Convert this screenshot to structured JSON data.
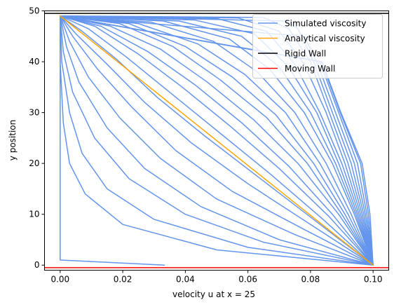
{
  "chart_data": {
    "type": "line",
    "title": "",
    "xlabel": "velocity u at x = 25",
    "ylabel": "y position",
    "xlim": [
      -0.005,
      0.105
    ],
    "ylim": [
      -1,
      50
    ],
    "xticks": [
      "0.00",
      "0.02",
      "0.04",
      "0.06",
      "0.08",
      "0.10"
    ],
    "xtick_values": [
      0,
      0.02,
      0.04,
      0.06,
      0.08,
      0.1
    ],
    "yticks": [
      "0",
      "10",
      "20",
      "30",
      "40",
      "50"
    ],
    "ytick_values": [
      0,
      10,
      20,
      30,
      40,
      50
    ],
    "grid": false,
    "legend_position": "top-right",
    "legend": [
      {
        "label": "Simulated viscosity",
        "color": "#6495ED"
      },
      {
        "label": "Analytical viscosity",
        "color": "#FFA500"
      },
      {
        "label": "Rigid Wall",
        "color": "#000000"
      },
      {
        "label": "Moving Wall",
        "color": "#FF0000"
      }
    ],
    "reference_lines": [
      {
        "name": "Rigid Wall",
        "y": 49.5,
        "color": "#000000"
      },
      {
        "name": "Moving Wall",
        "y": -0.5,
        "color": "#FF0000"
      }
    ],
    "series": [
      {
        "name": "Simulated viscosity",
        "color": "#6495ED",
        "profiles": [
          {
            "points": [
              [
                0.0333,
                0
              ],
              [
                0,
                1
              ],
              [
                0,
                10
              ],
              [
                0,
                20
              ],
              [
                0,
                30
              ],
              [
                0,
                40
              ],
              [
                0,
                49
              ]
            ]
          },
          {
            "points": [
              [
                0.1,
                0
              ],
              [
                0.05,
                3
              ],
              [
                0.02,
                8
              ],
              [
                0.008,
                14
              ],
              [
                0.003,
                20
              ],
              [
                0.001,
                28
              ],
              [
                0,
                40
              ],
              [
                0,
                49
              ]
            ]
          },
          {
            "points": [
              [
                0.1,
                0
              ],
              [
                0.06,
                3.5
              ],
              [
                0.03,
                9
              ],
              [
                0.015,
                15
              ],
              [
                0.007,
                22
              ],
              [
                0.003,
                30
              ],
              [
                0.0005,
                40
              ],
              [
                0,
                49
              ]
            ]
          },
          {
            "points": [
              [
                0.1,
                0
              ],
              [
                0.065,
                4.5
              ],
              [
                0.04,
                10
              ],
              [
                0.022,
                17
              ],
              [
                0.011,
                25
              ],
              [
                0.004,
                34
              ],
              [
                0.001,
                42
              ],
              [
                0,
                49
              ]
            ]
          },
          {
            "points": [
              [
                0.1,
                0
              ],
              [
                0.07,
                5
              ],
              [
                0.045,
                11.5
              ],
              [
                0.027,
                19
              ],
              [
                0.015,
                27
              ],
              [
                0.006,
                36
              ],
              [
                0.002,
                43
              ],
              [
                0,
                49
              ]
            ]
          },
          {
            "points": [
              [
                0.1,
                0
              ],
              [
                0.075,
                6
              ],
              [
                0.05,
                13
              ],
              [
                0.032,
                21
              ],
              [
                0.019,
                29
              ],
              [
                0.009,
                37
              ],
              [
                0.003,
                44
              ],
              [
                0,
                49
              ]
            ]
          },
          {
            "points": [
              [
                0.1,
                0
              ],
              [
                0.078,
                7
              ],
              [
                0.055,
                14.5
              ],
              [
                0.037,
                22.5
              ],
              [
                0.023,
                31
              ],
              [
                0.012,
                38.5
              ],
              [
                0.004,
                45
              ],
              [
                0,
                49
              ]
            ]
          },
          {
            "points": [
              [
                0.1,
                0
              ],
              [
                0.08,
                8
              ],
              [
                0.06,
                16
              ],
              [
                0.042,
                24
              ],
              [
                0.027,
                32
              ],
              [
                0.015,
                39.5
              ],
              [
                0.005,
                45.5
              ],
              [
                0,
                49
              ]
            ]
          },
          {
            "points": [
              [
                0.1,
                0
              ],
              [
                0.082,
                8.5
              ],
              [
                0.064,
                17
              ],
              [
                0.046,
                25.5
              ],
              [
                0.031,
                33
              ],
              [
                0.018,
                40.5
              ],
              [
                0.007,
                46
              ],
              [
                0,
                49
              ]
            ]
          },
          {
            "points": [
              [
                0.1,
                0
              ],
              [
                0.084,
                9
              ],
              [
                0.067,
                18
              ],
              [
                0.05,
                26.5
              ],
              [
                0.035,
                34
              ],
              [
                0.021,
                41
              ],
              [
                0.009,
                46.5
              ],
              [
                0,
                49
              ]
            ]
          },
          {
            "points": [
              [
                0.1,
                0
              ],
              [
                0.086,
                9.5
              ],
              [
                0.07,
                19
              ],
              [
                0.054,
                27.5
              ],
              [
                0.039,
                35
              ],
              [
                0.025,
                41.5
              ],
              [
                0.011,
                47
              ],
              [
                0,
                49
              ]
            ]
          },
          {
            "points": [
              [
                0.1,
                0
              ],
              [
                0.087,
                10
              ],
              [
                0.073,
                19.5
              ],
              [
                0.058,
                28
              ],
              [
                0.043,
                35.5
              ],
              [
                0.028,
                42
              ],
              [
                0.013,
                47
              ],
              [
                0,
                49
              ]
            ]
          },
          {
            "points": [
              [
                0.1,
                0
              ],
              [
                0.089,
                10
              ],
              [
                0.076,
                20
              ],
              [
                0.062,
                28.5
              ],
              [
                0.047,
                36
              ],
              [
                0.032,
                42.5
              ],
              [
                0.016,
                47
              ],
              [
                0,
                49
              ]
            ]
          },
          {
            "points": [
              [
                0.1,
                0
              ],
              [
                0.09,
                10
              ],
              [
                0.079,
                20
              ],
              [
                0.066,
                29
              ],
              [
                0.051,
                36.5
              ],
              [
                0.036,
                43
              ],
              [
                0.019,
                47.5
              ],
              [
                0,
                49
              ]
            ]
          },
          {
            "points": [
              [
                0.1,
                0
              ],
              [
                0.091,
                10
              ],
              [
                0.081,
                20
              ],
              [
                0.069,
                29.5
              ],
              [
                0.055,
                37
              ],
              [
                0.04,
                43
              ],
              [
                0.022,
                47.5
              ],
              [
                0,
                49
              ]
            ]
          },
          {
            "points": [
              [
                0.1,
                0
              ],
              [
                0.092,
                10
              ],
              [
                0.083,
                20
              ],
              [
                0.072,
                30
              ],
              [
                0.059,
                37.5
              ],
              [
                0.044,
                43.5
              ],
              [
                0.025,
                47.5
              ],
              [
                0,
                49
              ]
            ]
          },
          {
            "points": [
              [
                0.1,
                0
              ],
              [
                0.093,
                10
              ],
              [
                0.085,
                20
              ],
              [
                0.075,
                30
              ],
              [
                0.063,
                38
              ],
              [
                0.049,
                44
              ],
              [
                0.029,
                47.8
              ],
              [
                0,
                49
              ]
            ]
          },
          {
            "points": [
              [
                0.1,
                0
              ],
              [
                0.094,
                10
              ],
              [
                0.087,
                20
              ],
              [
                0.078,
                30
              ],
              [
                0.067,
                38.5
              ],
              [
                0.054,
                44.5
              ],
              [
                0.033,
                48
              ],
              [
                0,
                49
              ]
            ]
          },
          {
            "points": [
              [
                0.1,
                0
              ],
              [
                0.0945,
                10
              ],
              [
                0.088,
                20
              ],
              [
                0.08,
                30
              ],
              [
                0.07,
                39
              ],
              [
                0.058,
                45
              ],
              [
                0.038,
                48
              ],
              [
                0,
                49
              ]
            ]
          },
          {
            "points": [
              [
                0.1,
                0
              ],
              [
                0.095,
                10
              ],
              [
                0.089,
                20
              ],
              [
                0.082,
                30
              ],
              [
                0.073,
                39
              ],
              [
                0.062,
                45.5
              ],
              [
                0.043,
                48.2
              ],
              [
                0,
                49
              ]
            ]
          },
          {
            "points": [
              [
                0.1,
                0
              ],
              [
                0.0955,
                10
              ],
              [
                0.09,
                20
              ],
              [
                0.083,
                30
              ],
              [
                0.075,
                39.5
              ],
              [
                0.066,
                46
              ],
              [
                0.05,
                48.5
              ],
              [
                0,
                49
              ]
            ]
          },
          {
            "points": [
              [
                0.1,
                0
              ],
              [
                0.096,
                10
              ],
              [
                0.091,
                20
              ],
              [
                0.085,
                30
              ],
              [
                0.078,
                39.5
              ],
              [
                0.07,
                46
              ],
              [
                0.057,
                48.6
              ],
              [
                0,
                49
              ]
            ]
          },
          {
            "points": [
              [
                0.1,
                0
              ],
              [
                0.0965,
                10
              ],
              [
                0.092,
                20
              ],
              [
                0.086,
                30
              ],
              [
                0.08,
                40
              ],
              [
                0.073,
                46.5
              ],
              [
                0.065,
                48.7
              ],
              [
                0,
                49
              ]
            ]
          },
          {
            "points": [
              [
                0.1,
                0
              ],
              [
                0.097,
                10
              ],
              [
                0.093,
                20
              ],
              [
                0.087,
                30
              ],
              [
                0.081,
                40
              ],
              [
                0.076,
                46.5
              ],
              [
                0.072,
                48
              ],
              [
                0,
                49
              ]
            ]
          },
          {
            "points": [
              [
                0.1,
                0
              ],
              [
                0.0975,
                10
              ],
              [
                0.094,
                20
              ],
              [
                0.088,
                30
              ],
              [
                0.082,
                40
              ],
              [
                0.078,
                45
              ],
              [
                0,
                49
              ]
            ]
          },
          {
            "points": [
              [
                0.1,
                0
              ],
              [
                0.098,
                10
              ],
              [
                0.095,
                20
              ],
              [
                0.089,
                30
              ],
              [
                0.083,
                40
              ],
              [
                0,
                49
              ]
            ]
          },
          {
            "points": [
              [
                0.1,
                0
              ],
              [
                0.0985,
                10
              ],
              [
                0.096,
                20
              ],
              [
                0.0895,
                30
              ],
              [
                0.0835,
                40
              ],
              [
                0,
                49
              ]
            ]
          },
          {
            "points": [
              [
                0.1,
                0
              ],
              [
                0.099,
                10
              ],
              [
                0.0965,
                20
              ],
              [
                0.0897,
                30
              ],
              [
                0.0837,
                40
              ],
              [
                0,
                49
              ]
            ]
          }
        ]
      },
      {
        "name": "Analytical viscosity",
        "color": "#FFA500",
        "points": [
          [
            0.1,
            0
          ],
          [
            0,
            49
          ]
        ]
      }
    ]
  }
}
